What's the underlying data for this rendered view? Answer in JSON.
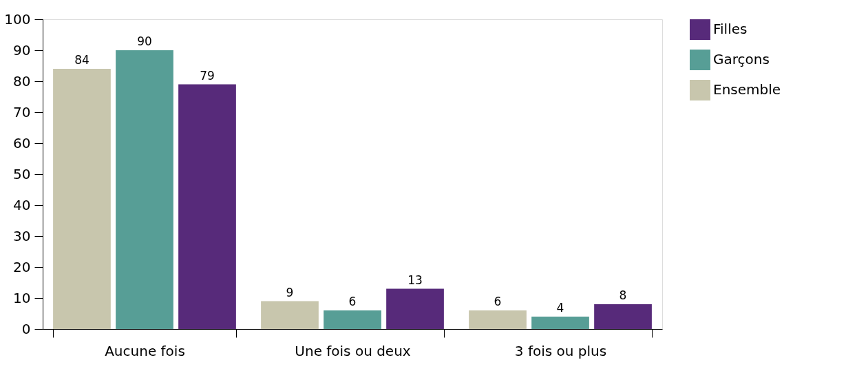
{
  "chart_data": {
    "type": "bar",
    "categories": [
      "Aucune fois",
      "Une fois ou deux",
      "3 fois ou plus"
    ],
    "series": [
      {
        "name": "Ensemble",
        "color": "#c8c6ad",
        "values": [
          84,
          9,
          6
        ]
      },
      {
        "name": "Garçons",
        "color": "#579e96",
        "values": [
          90,
          6,
          4
        ]
      },
      {
        "name": "Filles",
        "color": "#572a7a",
        "values": [
          79,
          13,
          8
        ]
      }
    ],
    "ylim": [
      0,
      100
    ],
    "yticks": [
      0,
      10,
      20,
      30,
      40,
      50,
      60,
      70,
      80,
      90,
      100
    ],
    "grid": false,
    "legend": "top right",
    "data_labels": true
  }
}
